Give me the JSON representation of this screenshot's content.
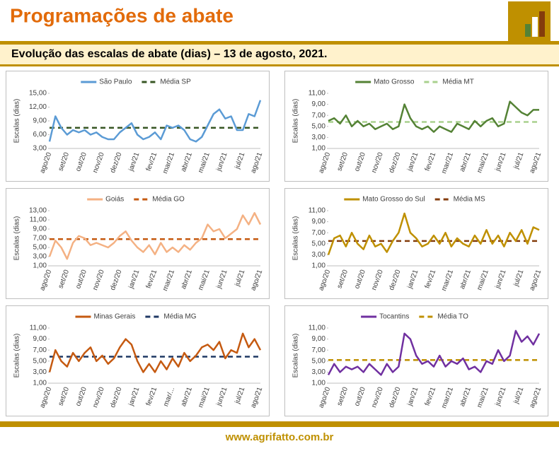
{
  "header": {
    "title": "Programações de abate",
    "subtitle": "Evolução das escalas de abate (dias) – 13 de agosto, 2021."
  },
  "chart_data": [
    {
      "type": "line",
      "ylabel": "Escalas (dias)",
      "ylim": [
        3,
        15
      ],
      "yticks": [
        {
          "value": 3,
          "label": "3,00"
        },
        {
          "value": 6,
          "label": "6,00"
        },
        {
          "value": 9,
          "label": "9,00"
        },
        {
          "value": 12,
          "label": "12,00"
        },
        {
          "value": 15,
          "label": "15,00"
        }
      ],
      "categories": [
        "ago/20",
        null,
        null,
        "set/20",
        null,
        null,
        "out/20",
        null,
        null,
        "nov/20",
        null,
        null,
        "dez/20",
        null,
        null,
        "jan/21",
        null,
        null,
        "fev/21",
        null,
        null,
        "mar/21",
        null,
        null,
        "abr/21",
        null,
        null,
        "mai/21",
        null,
        null,
        "jun/21",
        null,
        null,
        "jul/21",
        null,
        null,
        "ago/21"
      ],
      "series": [
        {
          "name": "São Paulo",
          "color": "#5b9bd5",
          "values": [
            4.5,
            10,
            7.5,
            6,
            7,
            6.5,
            7,
            6,
            6.5,
            5.5,
            5,
            5,
            6.5,
            7.5,
            8.5,
            6,
            5,
            5.5,
            6.5,
            5,
            8,
            7.5,
            8,
            7,
            5,
            4.5,
            5.5,
            8,
            10.5,
            11.5,
            9.5,
            10,
            7,
            7,
            10.5,
            10,
            13.5
          ]
        }
      ],
      "average": {
        "name": "Média SP",
        "color": "#375623",
        "value": 7.5
      }
    },
    {
      "type": "line",
      "ylabel": "Escalas (dias)",
      "ylim": [
        1,
        11
      ],
      "yticks": [
        {
          "value": 1,
          "label": "1,00"
        },
        {
          "value": 3,
          "label": "3,00"
        },
        {
          "value": 5,
          "label": "5,00"
        },
        {
          "value": 7,
          "label": "7,00"
        },
        {
          "value": 9,
          "label": "9,00"
        },
        {
          "value": 11,
          "label": "11,00"
        }
      ],
      "categories": [
        "ago/20",
        null,
        null,
        "set/20",
        null,
        null,
        "out/20",
        null,
        null,
        "nov/20",
        null,
        null,
        "dez/20",
        null,
        null,
        "jan/21",
        null,
        null,
        "fev/21",
        null,
        null,
        "mar/21",
        null,
        null,
        "abr/21",
        null,
        null,
        "mai/21",
        null,
        null,
        "jun/21",
        null,
        null,
        "jul/21",
        null,
        null,
        "ago/21"
      ],
      "series": [
        {
          "name": "Mato Grosso",
          "color": "#548235",
          "values": [
            6,
            6.5,
            5.5,
            7,
            5,
            6,
            5,
            5.5,
            4.5,
            5,
            5.5,
            4.5,
            5,
            9,
            6.5,
            5,
            4.5,
            5,
            4,
            5,
            4.5,
            4,
            5.5,
            5,
            4.5,
            6,
            5,
            6,
            6.5,
            5,
            5.5,
            9.5,
            8.5,
            7.5,
            7,
            8,
            8
          ]
        }
      ],
      "average": {
        "name": "Média MT",
        "color": "#a9d18e",
        "value": 5.8
      }
    },
    {
      "type": "line",
      "ylabel": "Escalas (dias)",
      "ylim": [
        1,
        13
      ],
      "yticks": [
        {
          "value": 1,
          "label": "1,00"
        },
        {
          "value": 3,
          "label": "3,00"
        },
        {
          "value": 5,
          "label": "5,00"
        },
        {
          "value": 7,
          "label": "7,00"
        },
        {
          "value": 9,
          "label": "9,00"
        },
        {
          "value": 11,
          "label": "11,00"
        },
        {
          "value": 13,
          "label": "13,00"
        }
      ],
      "categories": [
        "ago/20",
        null,
        null,
        "set/20",
        null,
        null,
        "out/20",
        null,
        null,
        "nov/20",
        null,
        null,
        "dez/20",
        null,
        null,
        "jan/21",
        null,
        null,
        "fev/21",
        null,
        null,
        "mar/21",
        null,
        null,
        "abr/21",
        null,
        null,
        "mai/21",
        null,
        null,
        "jun/21",
        null,
        null,
        "jul/21",
        null,
        null,
        "ago/21"
      ],
      "series": [
        {
          "name": "Goiás",
          "color": "#f4b183",
          "values": [
            3,
            6.5,
            5,
            2.5,
            6,
            7.5,
            7,
            5.5,
            6,
            5.5,
            5,
            6,
            7.5,
            8.5,
            6.5,
            5,
            4,
            5.5,
            3.5,
            6,
            4,
            5,
            4,
            5.5,
            4.5,
            6,
            7,
            10,
            8.5,
            9,
            7,
            8,
            9,
            12,
            10,
            12.5,
            10
          ]
        }
      ],
      "average": {
        "name": "Média GO",
        "color": "#c55a11",
        "value": 6.8
      }
    },
    {
      "type": "line",
      "ylabel": "Escalas (dias)",
      "ylim": [
        1,
        11
      ],
      "yticks": [
        {
          "value": 1,
          "label": "1,00"
        },
        {
          "value": 3,
          "label": "3,00"
        },
        {
          "value": 5,
          "label": "5,00"
        },
        {
          "value": 7,
          "label": "7,00"
        },
        {
          "value": 9,
          "label": "9,00"
        },
        {
          "value": 11,
          "label": "11,00"
        }
      ],
      "categories": [
        "ago/20",
        null,
        null,
        "set/20",
        null,
        null,
        "out/20",
        null,
        null,
        "nov/20",
        null,
        null,
        "dez/20",
        null,
        null,
        "jan/21",
        null,
        null,
        "fev/21",
        null,
        null,
        "mar/21",
        null,
        null,
        "abr/21",
        null,
        null,
        "mai/21",
        null,
        null,
        "jun/21",
        null,
        null,
        "jul/21",
        null,
        null,
        "ago/21"
      ],
      "series": [
        {
          "name": "Mato Grosso do Sul",
          "color": "#bf9000",
          "values": [
            3,
            6,
            6.5,
            4.5,
            7,
            5,
            4,
            6.5,
            4.5,
            5,
            3.5,
            5.5,
            7,
            10.5,
            7,
            6,
            4.5,
            5,
            6.5,
            5,
            7,
            4.5,
            6,
            5,
            4.5,
            6.5,
            5,
            7.5,
            5,
            6.5,
            4.5,
            7,
            5.5,
            7.5,
            5,
            8,
            7.5
          ]
        }
      ],
      "average": {
        "name": "Média MS",
        "color": "#843c0c",
        "value": 5.5
      }
    },
    {
      "type": "line",
      "ylabel": "Escalas (dias)",
      "ylim": [
        1,
        11
      ],
      "yticks": [
        {
          "value": 1,
          "label": "1,00"
        },
        {
          "value": 3,
          "label": "3,00"
        },
        {
          "value": 5,
          "label": "5,00"
        },
        {
          "value": 7,
          "label": "7,00"
        },
        {
          "value": 9,
          "label": "9,00"
        },
        {
          "value": 11,
          "label": "11,00"
        }
      ],
      "categories": [
        "ago/20",
        null,
        null,
        "set/20",
        null,
        null,
        "out/20",
        null,
        null,
        "nov/20",
        null,
        null,
        "dez/20",
        null,
        null,
        "jan/21",
        null,
        null,
        "fev/21",
        null,
        null,
        "mar/...",
        null,
        null,
        "abr/21",
        null,
        null,
        "mai/21",
        null,
        null,
        "jun/21",
        null,
        null,
        "jul/21",
        null,
        null,
        "ago/21"
      ],
      "series": [
        {
          "name": "Minas Gerais",
          "color": "#c55a11",
          "values": [
            3,
            7,
            5,
            4,
            6.5,
            5,
            6.5,
            7.5,
            5,
            6,
            4.5,
            5.5,
            7.5,
            9,
            8,
            5,
            3,
            4.5,
            3,
            5,
            3.5,
            5.5,
            4,
            6.5,
            5,
            6,
            7.5,
            8,
            7,
            8.5,
            5.5,
            7,
            6.5,
            10,
            7.5,
            9,
            7
          ]
        }
      ],
      "average": {
        "name": "Média MG",
        "color": "#1f3864",
        "value": 5.8
      }
    },
    {
      "type": "line",
      "ylabel": "Escalas (dias)",
      "ylim": [
        1,
        11
      ],
      "yticks": [
        {
          "value": 1,
          "label": "1,00"
        },
        {
          "value": 3,
          "label": "3,00"
        },
        {
          "value": 5,
          "label": "5,00"
        },
        {
          "value": 7,
          "label": "7,00"
        },
        {
          "value": 9,
          "label": "9,00"
        },
        {
          "value": 11,
          "label": "11,00"
        }
      ],
      "categories": [
        "ago/20",
        null,
        null,
        "set/20",
        null,
        null,
        "out/20",
        null,
        null,
        "nov/20",
        null,
        null,
        "dez/20",
        null,
        null,
        "jan/21",
        null,
        null,
        "fev/21",
        null,
        null,
        "mar/21",
        null,
        null,
        "abr/21",
        null,
        null,
        "mai/21",
        null,
        null,
        "jun/21",
        null,
        null,
        "jul/21",
        null,
        null,
        "ago/21"
      ],
      "series": [
        {
          "name": "Tocantins",
          "color": "#7030a0",
          "values": [
            2.5,
            4.5,
            3,
            4,
            3.5,
            4,
            3,
            4.5,
            3.5,
            2.5,
            4.5,
            3,
            4,
            10,
            9,
            6,
            4.5,
            5,
            4,
            6,
            4,
            5,
            4.5,
            5.5,
            3.5,
            4,
            3,
            5,
            4.5,
            7,
            5,
            6,
            10.5,
            8.5,
            9.5,
            8,
            10
          ]
        }
      ],
      "average": {
        "name": "Média TO",
        "color": "#bf9000",
        "value": 5.2
      }
    }
  ],
  "footer": {
    "url": "www.agrifatto.com.br"
  }
}
